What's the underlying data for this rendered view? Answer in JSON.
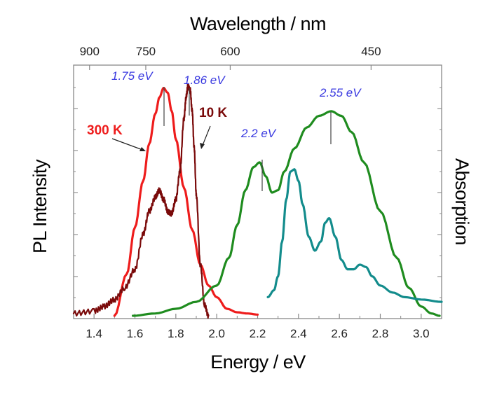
{
  "chart_data": {
    "type": "line",
    "xlabel": "Energy / eV",
    "x2label": "Wavelength / nm",
    "ylabel_left": "PL Intensity",
    "ylabel_right": "Absorption",
    "xlim": [
      1.3,
      3.1
    ],
    "ylim": [
      0,
      1.0
    ],
    "x_ticks": [
      "1.4",
      "1.6",
      "1.8",
      "2.0",
      "2.2",
      "2.4",
      "2.6",
      "2.8",
      "3.0"
    ],
    "x_tick_values": [
      1.4,
      1.6,
      1.8,
      2.0,
      2.2,
      2.4,
      2.6,
      2.8,
      3.0
    ],
    "x2_ticks": [
      {
        "label": "900",
        "energy": 1.378
      },
      {
        "label": "750",
        "energy": 1.653
      },
      {
        "label": "600",
        "energy": 2.066
      },
      {
        "label": "450",
        "energy": 2.755
      }
    ],
    "series": [
      {
        "name": "300 K",
        "color": "#ee1c1c",
        "x": [
          1.5,
          1.56,
          1.6,
          1.64,
          1.67,
          1.7,
          1.72,
          1.74,
          1.76,
          1.78,
          1.8,
          1.84,
          1.88,
          1.92,
          1.96,
          2.0,
          2.05,
          2.1,
          2.15,
          2.2
        ],
        "y": [
          0.0,
          0.18,
          0.38,
          0.58,
          0.74,
          0.87,
          0.94,
          0.98,
          0.96,
          0.88,
          0.76,
          0.55,
          0.37,
          0.22,
          0.13,
          0.08,
          0.03,
          0.015,
          0.01,
          0.005
        ]
      },
      {
        "name": "10 K",
        "color": "#7a0a0a",
        "x": [
          1.3,
          1.4,
          1.45,
          1.5,
          1.55,
          1.6,
          1.64,
          1.67,
          1.7,
          1.72,
          1.74,
          1.76,
          1.78,
          1.8,
          1.82,
          1.84,
          1.85,
          1.86,
          1.87,
          1.88,
          1.89,
          1.9,
          1.92,
          1.94,
          1.96
        ],
        "y": [
          0.01,
          0.02,
          0.04,
          0.07,
          0.12,
          0.2,
          0.35,
          0.45,
          0.51,
          0.54,
          0.5,
          0.45,
          0.44,
          0.5,
          0.62,
          0.85,
          0.94,
          0.99,
          0.97,
          0.88,
          0.72,
          0.52,
          0.22,
          0.05,
          0.0
        ]
      },
      {
        "name": "Absorption (green)",
        "color": "#1f8c1f",
        "x": [
          1.59,
          1.7,
          1.8,
          1.9,
          2.0,
          2.06,
          2.1,
          2.14,
          2.18,
          2.21,
          2.24,
          2.27,
          2.3,
          2.33,
          2.38,
          2.44,
          2.5,
          2.56,
          2.61,
          2.66,
          2.72,
          2.8,
          2.88,
          2.94,
          3.0,
          3.05,
          3.09
        ],
        "y": [
          0.0,
          0.01,
          0.03,
          0.06,
          0.13,
          0.25,
          0.39,
          0.54,
          0.64,
          0.66,
          0.6,
          0.53,
          0.54,
          0.62,
          0.72,
          0.81,
          0.86,
          0.88,
          0.86,
          0.79,
          0.66,
          0.45,
          0.25,
          0.12,
          0.04,
          0.01,
          0.0
        ]
      },
      {
        "name": "Absorption (teal)",
        "color": "#138c8c",
        "x": [
          2.25,
          2.28,
          2.3,
          2.32,
          2.34,
          2.36,
          2.38,
          2.4,
          2.42,
          2.45,
          2.48,
          2.51,
          2.53,
          2.55,
          2.58,
          2.61,
          2.64,
          2.67,
          2.7,
          2.73,
          2.76,
          2.8,
          2.86,
          2.92,
          3.0,
          3.1
        ],
        "y": [
          0.08,
          0.11,
          0.17,
          0.32,
          0.5,
          0.62,
          0.63,
          0.58,
          0.48,
          0.34,
          0.28,
          0.32,
          0.4,
          0.42,
          0.34,
          0.24,
          0.2,
          0.2,
          0.22,
          0.21,
          0.17,
          0.13,
          0.1,
          0.08,
          0.07,
          0.06
        ]
      }
    ],
    "annotations": [
      {
        "text": "1.75 eV",
        "color": "#3a3ae0",
        "at_x": 1.74,
        "kind": "peak-top"
      },
      {
        "text": "1.86 eV",
        "color": "#3a3ae0",
        "at_x": 1.86,
        "kind": "peak-top"
      },
      {
        "text": "2.2 eV",
        "color": "#3a3ae0",
        "at_x": 2.21,
        "kind": "peak-mid"
      },
      {
        "text": "2.55 eV",
        "color": "#3a3ae0",
        "at_x": 2.56,
        "kind": "peak-mid"
      },
      {
        "text": "300 K",
        "color": "#ee1c1c",
        "kind": "series-label"
      },
      {
        "text": "10 K",
        "color": "#7a0a0a",
        "kind": "series-label"
      }
    ],
    "grid": false,
    "legend": "none"
  }
}
